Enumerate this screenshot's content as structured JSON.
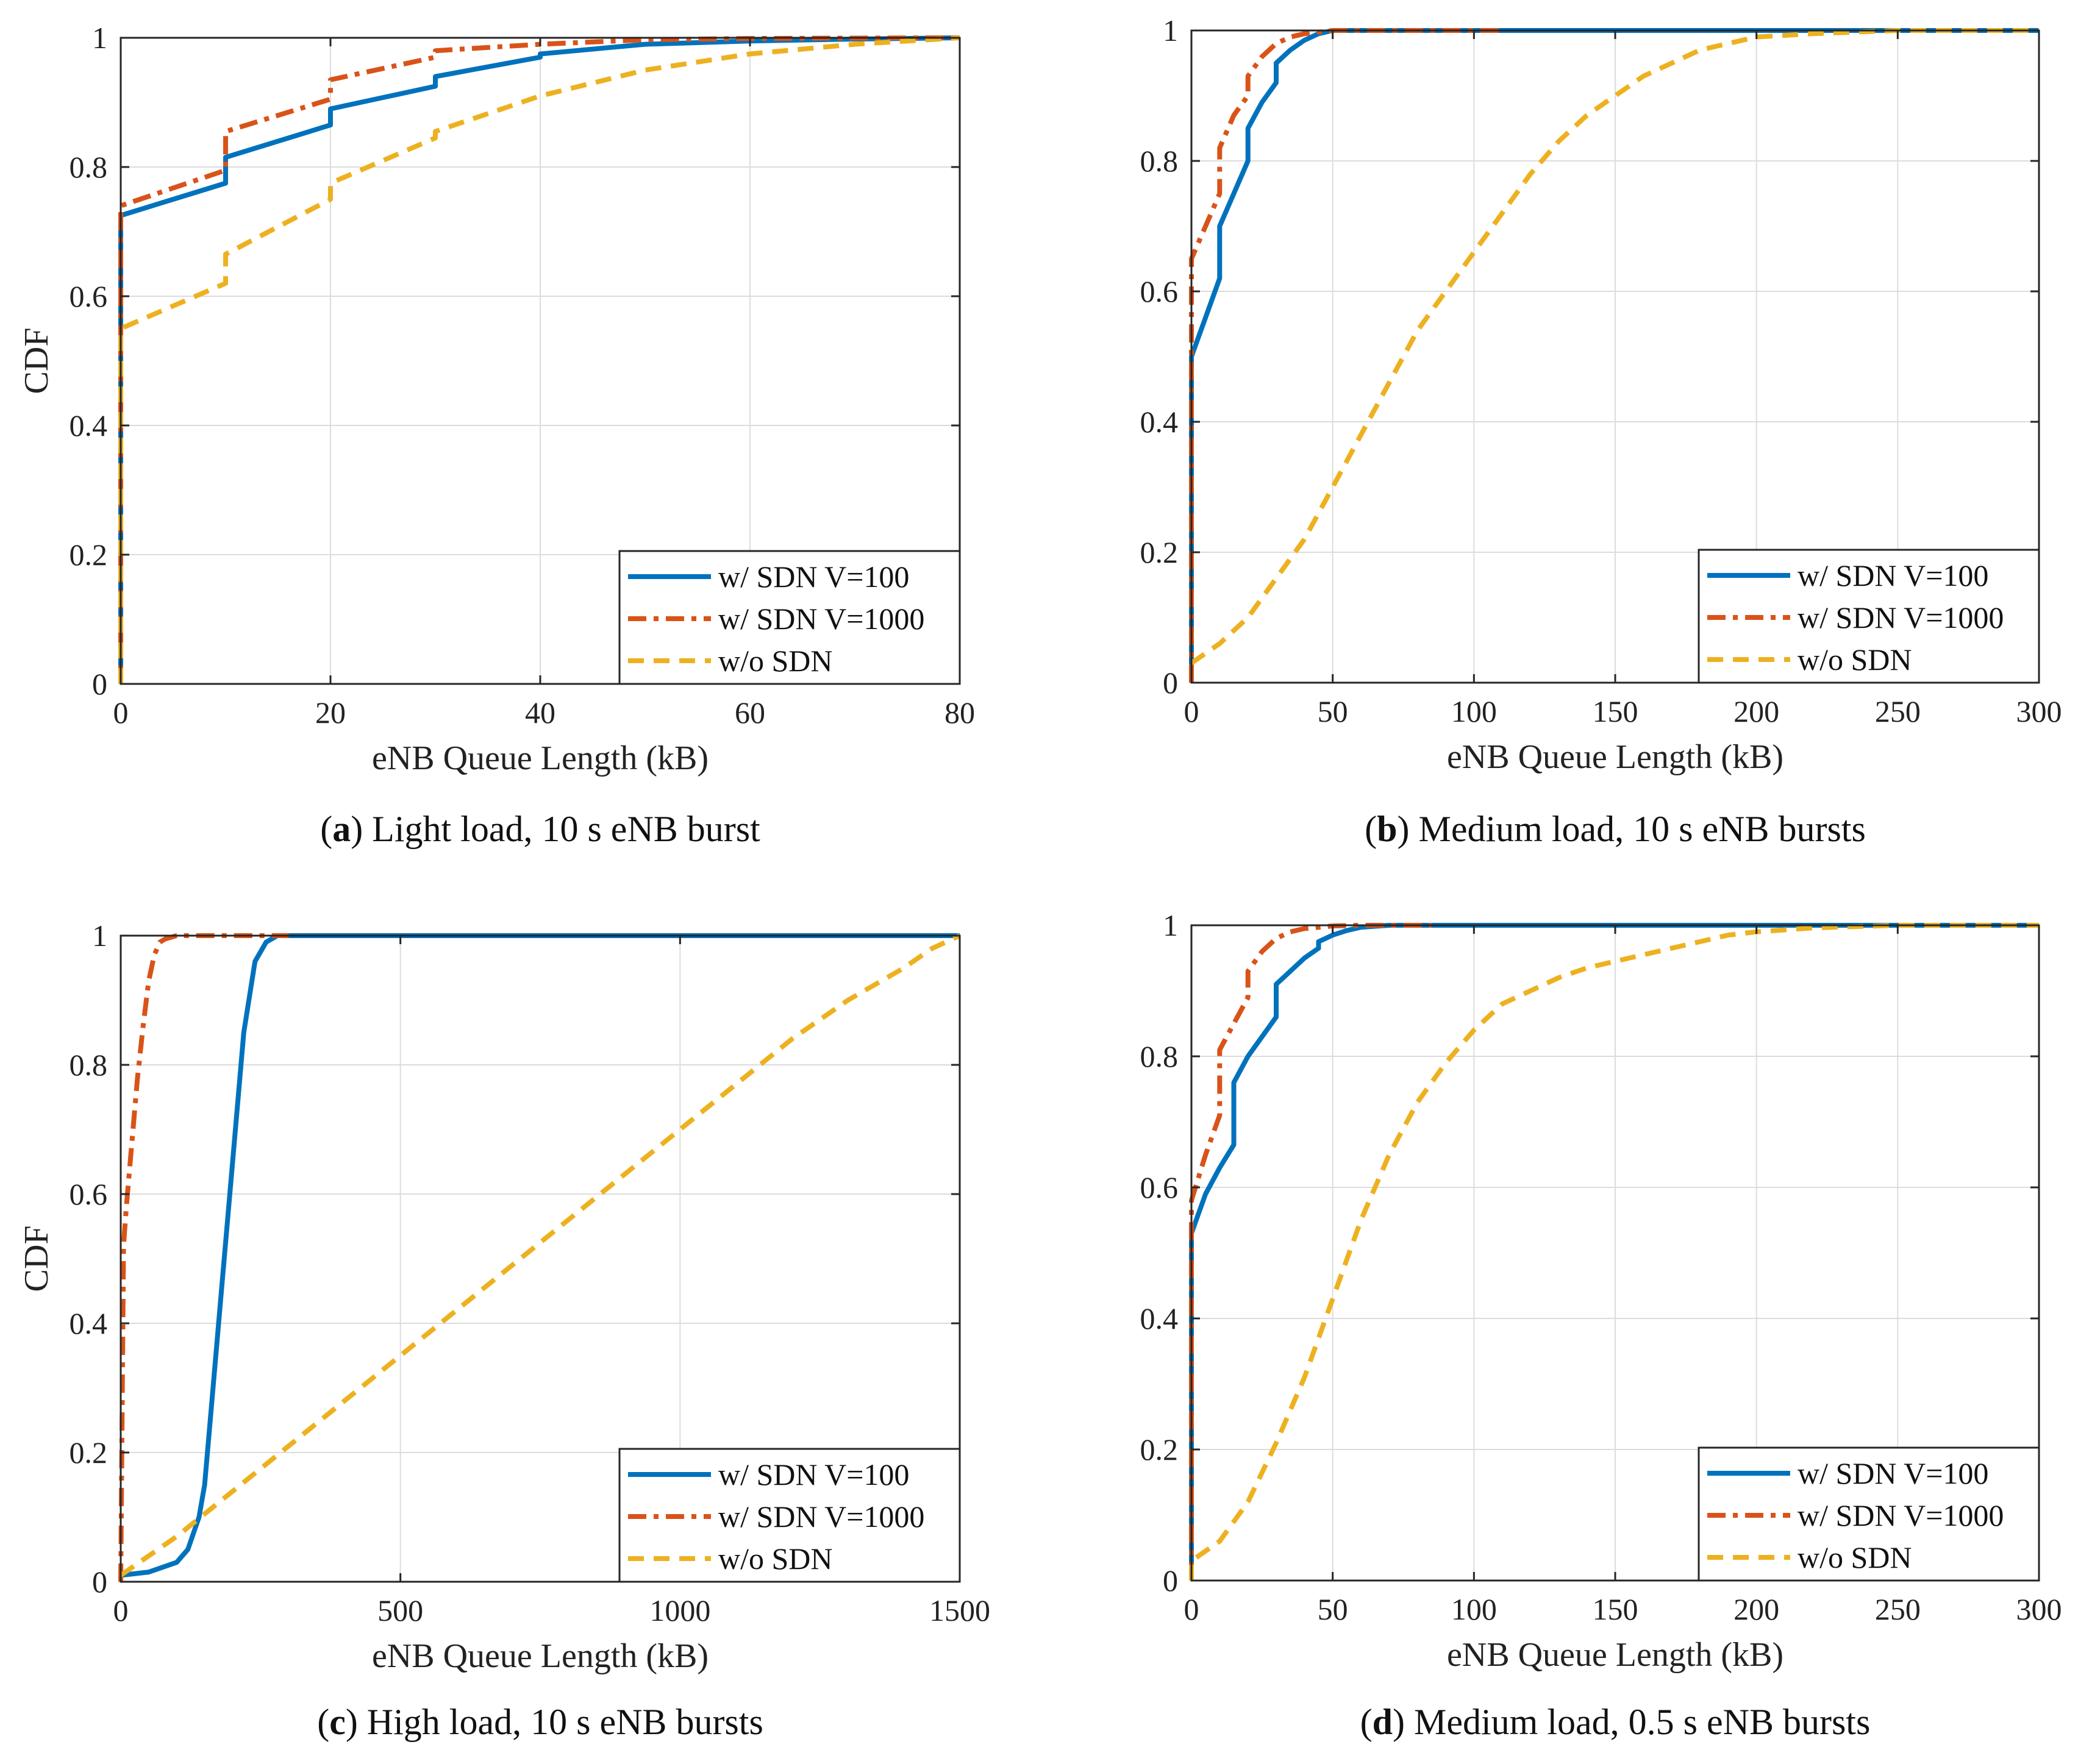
{
  "series_styles": {
    "v100": {
      "color": "#0072BD",
      "dash": "none"
    },
    "v1000": {
      "color": "#D95319",
      "dash": "30,12,8,12"
    },
    "nosdn": {
      "color": "#EDB120",
      "dash": "26,16"
    }
  },
  "chart_data": [
    {
      "type": "line",
      "panel_label": "a",
      "caption": "Light load, 10 s eNB burst",
      "xlabel": "eNB Queue Length (kB)",
      "ylabel": "CDF",
      "xlim": [
        0,
        80
      ],
      "ylim": [
        0,
        1
      ],
      "xticks": [
        0,
        20,
        40,
        60,
        80
      ],
      "yticks": [
        0,
        0.2,
        0.4,
        0.6,
        0.8,
        1
      ],
      "ytick_labels": [
        "0",
        "0.2",
        "0.4",
        "0.6",
        "0.8",
        "1"
      ],
      "xtick_labels": [
        "0",
        "20",
        "40",
        "60",
        "80"
      ],
      "grid": true,
      "legend_position": "bottom-right",
      "series": [
        {
          "key": "v100",
          "name": "w/ SDN V=100",
          "x": [
            0,
            0,
            10,
            10,
            20,
            20,
            30,
            30,
            40,
            40,
            50,
            60,
            70,
            80
          ],
          "y": [
            0,
            0.725,
            0.775,
            0.815,
            0.865,
            0.89,
            0.925,
            0.94,
            0.97,
            0.975,
            0.99,
            0.995,
            0.998,
            1.0
          ]
        },
        {
          "key": "v1000",
          "name": "w/ SDN V=1000",
          "x": [
            0,
            0,
            10,
            10,
            20,
            20,
            30,
            30,
            40,
            50,
            60,
            80
          ],
          "y": [
            0,
            0.74,
            0.795,
            0.855,
            0.905,
            0.935,
            0.97,
            0.98,
            0.99,
            0.997,
            0.999,
            1.0
          ]
        },
        {
          "key": "nosdn",
          "name": "w/o SDN",
          "x": [
            0,
            0,
            10,
            10,
            20,
            20,
            30,
            30,
            40,
            50,
            60,
            70,
            80
          ],
          "y": [
            0,
            0.55,
            0.62,
            0.665,
            0.75,
            0.775,
            0.845,
            0.855,
            0.91,
            0.95,
            0.975,
            0.99,
            1.0
          ]
        }
      ]
    },
    {
      "type": "line",
      "panel_label": "b",
      "caption": "Medium load, 10 s eNB bursts",
      "xlabel": "eNB Queue Length (kB)",
      "ylabel": "",
      "xlim": [
        0,
        300
      ],
      "ylim": [
        0,
        1
      ],
      "xticks": [
        0,
        50,
        100,
        150,
        200,
        250,
        300
      ],
      "yticks": [
        0,
        0.2,
        0.4,
        0.6,
        0.8,
        1
      ],
      "ytick_labels": [
        "0",
        "0.2",
        "0.4",
        "0.6",
        "0.8",
        "1"
      ],
      "xtick_labels": [
        "0",
        "50",
        "100",
        "150",
        "200",
        "250",
        "300"
      ],
      "grid": true,
      "legend_position": "bottom-right",
      "series": [
        {
          "key": "v100",
          "name": "w/ SDN V=100",
          "x": [
            0,
            0,
            5,
            10,
            10,
            15,
            20,
            20,
            25,
            30,
            30,
            35,
            40,
            45,
            50,
            60,
            300
          ],
          "y": [
            0,
            0.5,
            0.56,
            0.62,
            0.7,
            0.75,
            0.8,
            0.85,
            0.89,
            0.92,
            0.95,
            0.97,
            0.985,
            0.995,
            1.0,
            1.0,
            1.0
          ]
        },
        {
          "key": "v1000",
          "name": "w/ SDN V=1000",
          "x": [
            0,
            0,
            5,
            10,
            10,
            15,
            20,
            20,
            25,
            30,
            35,
            40,
            50,
            110
          ],
          "y": [
            0,
            0.65,
            0.7,
            0.75,
            0.82,
            0.87,
            0.9,
            0.93,
            0.96,
            0.98,
            0.99,
            0.995,
            1.0,
            1.0
          ]
        },
        {
          "key": "nosdn",
          "name": "w/o SDN",
          "x": [
            0,
            10,
            20,
            30,
            40,
            50,
            60,
            70,
            80,
            90,
            100,
            110,
            120,
            130,
            140,
            150,
            160,
            170,
            180,
            190,
            200,
            220,
            250,
            300
          ],
          "y": [
            0.03,
            0.06,
            0.1,
            0.16,
            0.22,
            0.3,
            0.38,
            0.46,
            0.54,
            0.6,
            0.66,
            0.72,
            0.78,
            0.83,
            0.87,
            0.9,
            0.93,
            0.95,
            0.97,
            0.98,
            0.99,
            0.995,
            1.0,
            1.0
          ]
        }
      ]
    },
    {
      "type": "line",
      "panel_label": "c",
      "caption": "High load, 10 s eNB bursts",
      "xlabel": "eNB Queue Length (kB)",
      "ylabel": "CDF",
      "xlim": [
        0,
        1500
      ],
      "ylim": [
        0,
        1
      ],
      "xticks": [
        0,
        500,
        1000,
        1500
      ],
      "yticks": [
        0,
        0.2,
        0.4,
        0.6,
        0.8,
        1
      ],
      "ytick_labels": [
        "0",
        "0.2",
        "0.4",
        "0.6",
        "0.8",
        "1"
      ],
      "xtick_labels": [
        "0",
        "500",
        "1000",
        "1500"
      ],
      "grid": true,
      "legend_position": "bottom-right",
      "series": [
        {
          "key": "v100",
          "name": "w/ SDN V=100",
          "x": [
            0,
            50,
            100,
            120,
            140,
            150,
            160,
            180,
            200,
            220,
            240,
            260,
            280,
            300,
            1500
          ],
          "y": [
            0.01,
            0.015,
            0.03,
            0.05,
            0.1,
            0.15,
            0.25,
            0.45,
            0.65,
            0.85,
            0.96,
            0.99,
            1.0,
            1.0,
            1.0
          ]
        },
        {
          "key": "v1000",
          "name": "w/ SDN V=1000",
          "x": [
            0,
            5,
            10,
            20,
            30,
            40,
            50,
            60,
            70,
            80,
            100,
            150,
            300
          ],
          "y": [
            0,
            0.52,
            0.58,
            0.68,
            0.78,
            0.86,
            0.93,
            0.97,
            0.99,
            0.995,
            1.0,
            1.0,
            1.0
          ]
        },
        {
          "key": "nosdn",
          "name": "w/o SDN",
          "x": [
            0,
            100,
            200,
            300,
            400,
            500,
            600,
            700,
            800,
            900,
            1000,
            1100,
            1200,
            1300,
            1400,
            1450,
            1500
          ],
          "y": [
            0.01,
            0.07,
            0.14,
            0.21,
            0.28,
            0.35,
            0.42,
            0.49,
            0.56,
            0.63,
            0.7,
            0.77,
            0.84,
            0.9,
            0.95,
            0.98,
            1.0
          ]
        }
      ]
    },
    {
      "type": "line",
      "panel_label": "d",
      "caption": "Medium load, 0.5 s eNB bursts",
      "xlabel": "eNB Queue Length (kB)",
      "ylabel": "",
      "xlim": [
        0,
        300
      ],
      "ylim": [
        0,
        1
      ],
      "xticks": [
        0,
        50,
        100,
        150,
        200,
        250,
        300
      ],
      "yticks": [
        0,
        0.2,
        0.4,
        0.6,
        0.8,
        1
      ],
      "ytick_labels": [
        "0",
        "0.2",
        "0.4",
        "0.6",
        "0.8",
        "1"
      ],
      "xtick_labels": [
        "0",
        "50",
        "100",
        "150",
        "200",
        "250",
        "300"
      ],
      "grid": true,
      "legend_position": "bottom-right",
      "series": [
        {
          "key": "v100",
          "name": "w/ SDN V=100",
          "x": [
            0,
            0,
            5,
            10,
            15,
            15,
            20,
            25,
            30,
            30,
            35,
            40,
            45,
            45,
            50,
            55,
            60,
            70,
            300
          ],
          "y": [
            0,
            0.53,
            0.59,
            0.63,
            0.665,
            0.76,
            0.8,
            0.83,
            0.86,
            0.91,
            0.93,
            0.95,
            0.965,
            0.975,
            0.985,
            0.992,
            0.997,
            1.0,
            1.0
          ]
        },
        {
          "key": "v1000",
          "name": "w/ SDN V=1000",
          "x": [
            0,
            0,
            5,
            10,
            10,
            15,
            20,
            20,
            25,
            30,
            35,
            40,
            50,
            60,
            85
          ],
          "y": [
            0,
            0.58,
            0.65,
            0.71,
            0.81,
            0.85,
            0.89,
            0.93,
            0.96,
            0.98,
            0.99,
            0.995,
            0.999,
            1.0,
            1.0
          ]
        },
        {
          "key": "nosdn",
          "name": "w/o SDN",
          "x": [
            0,
            0,
            10,
            20,
            30,
            40,
            50,
            60,
            70,
            80,
            90,
            100,
            110,
            120,
            130,
            140,
            150,
            160,
            170,
            180,
            190,
            200,
            220,
            250,
            300
          ],
          "y": [
            0,
            0.03,
            0.06,
            0.12,
            0.21,
            0.31,
            0.43,
            0.55,
            0.65,
            0.73,
            0.79,
            0.84,
            0.88,
            0.9,
            0.92,
            0.935,
            0.945,
            0.955,
            0.965,
            0.975,
            0.985,
            0.99,
            0.996,
            1.0,
            1.0
          ]
        }
      ]
    }
  ]
}
